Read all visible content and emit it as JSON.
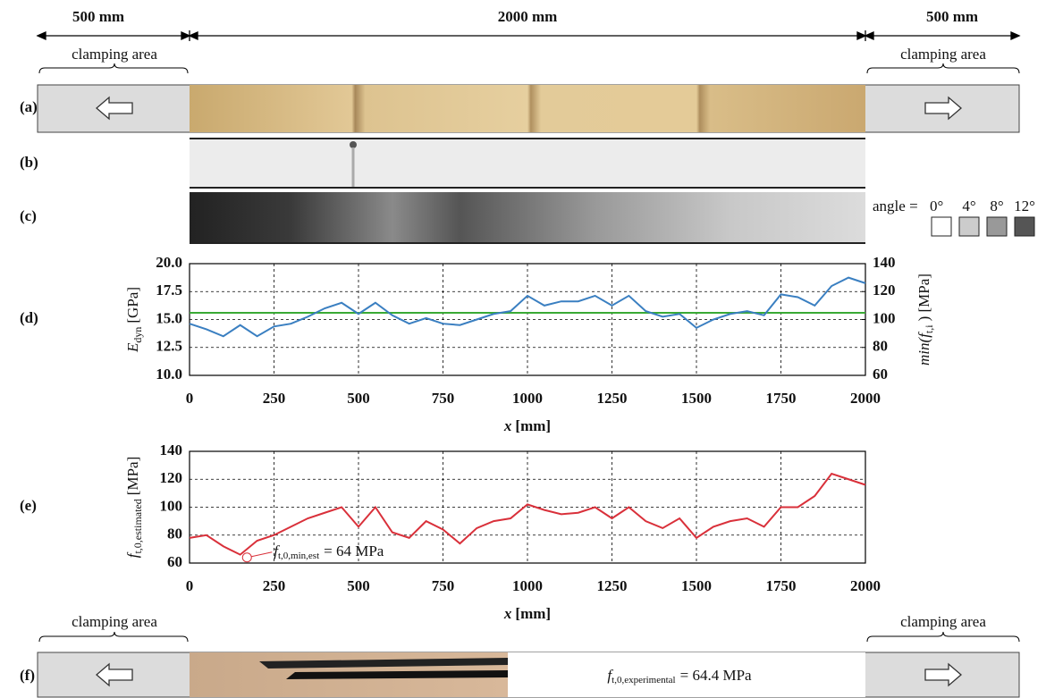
{
  "dimensions": [
    "500 mm",
    "2000 mm",
    "500 mm"
  ],
  "clamping_labels": [
    "clamping area",
    "clamping area",
    "clamping area",
    "clamping area"
  ],
  "panels": [
    "(a)",
    "(b)",
    "(c)",
    "(d)",
    "(e)",
    "(f)"
  ],
  "angle_legend": {
    "prefix": "angle =",
    "labels": [
      "0°",
      "4°",
      "8°",
      "12°"
    ],
    "colors": [
      "#ffffff",
      "#cccccc",
      "#999999",
      "#555555"
    ]
  },
  "experimental": {
    "symbol": "f",
    "subscript": "t,0,experimental",
    "text": "= 64.4 MPa"
  },
  "chart_data": [
    {
      "type": "line",
      "xlabel": {
        "main": "x",
        "unit": "[mm]"
      },
      "ylabel": {
        "main": "E",
        "sub": "dyn",
        "unit": "[GPa]"
      },
      "y2label": {
        "main": "min(f",
        "sub": "t,i",
        "unit": ") [MPa]"
      },
      "x": [
        0,
        50,
        100,
        150,
        200,
        250,
        300,
        350,
        400,
        450,
        500,
        550,
        600,
        650,
        700,
        750,
        800,
        850,
        900,
        950,
        1000,
        1050,
        1100,
        1150,
        1200,
        1250,
        1300,
        1350,
        1400,
        1450,
        1500,
        1550,
        1600,
        1650,
        1700,
        1750,
        1800,
        1850,
        1900,
        1950,
        2000
      ],
      "series": [
        {
          "color": "#3aaa35",
          "x": [
            0,
            2000
          ],
          "values": [
            15.6,
            15.6
          ]
        },
        {
          "color": "#3a7fc1",
          "axis": "y2",
          "values": [
            97,
            93,
            88,
            96,
            88,
            95,
            97,
            102,
            108,
            112,
            104,
            112,
            103,
            97,
            101,
            97,
            96,
            100,
            104,
            106,
            117,
            110,
            113,
            113,
            117,
            110,
            117,
            106,
            102,
            104,
            94,
            100,
            104,
            106,
            103,
            118,
            116,
            110,
            124,
            130,
            126
          ]
        }
      ],
      "xlim": [
        0,
        2000
      ],
      "xticks": [
        0,
        250,
        500,
        750,
        1000,
        1250,
        1500,
        1750,
        2000
      ],
      "ylim": [
        10,
        20
      ],
      "yticks": [
        {
          "value": 10,
          "label": "10.0"
        },
        12.5,
        {
          "value": 15,
          "label": "15.0"
        },
        17.5,
        {
          "value": 20,
          "label": "20.0"
        }
      ],
      "y2lim": [
        60,
        140
      ],
      "y2ticks": [
        60,
        80,
        100,
        120,
        140
      ],
      "grid": true
    },
    {
      "type": "line",
      "xlabel": {
        "main": "x",
        "unit": "[mm]"
      },
      "ylabel": {
        "main": "f",
        "sub": "t,0,estimated",
        "unit": "[MPa]"
      },
      "x": [
        0,
        50,
        100,
        150,
        200,
        250,
        300,
        350,
        400,
        450,
        500,
        550,
        600,
        650,
        700,
        750,
        800,
        850,
        900,
        950,
        1000,
        1050,
        1100,
        1150,
        1200,
        1250,
        1300,
        1350,
        1400,
        1450,
        1500,
        1550,
        1600,
        1650,
        1700,
        1750,
        1800,
        1850,
        1900,
        1950,
        2000
      ],
      "series": [
        {
          "color": "#d9303a",
          "values": [
            78,
            80,
            72,
            66,
            76,
            80,
            86,
            92,
            96,
            100,
            86,
            100,
            82,
            78,
            90,
            84,
            74,
            85,
            90,
            92,
            102,
            98,
            95,
            96,
            100,
            92,
            100,
            90,
            85,
            92,
            78,
            86,
            90,
            92,
            86,
            100,
            100,
            108,
            124,
            120,
            116
          ]
        }
      ],
      "annotation": {
        "x": 170,
        "y": 64,
        "symbol": "f",
        "subscript": "t,0,min,est",
        "text": "= 64 MPa"
      },
      "xlim": [
        0,
        2000
      ],
      "xticks": [
        0,
        250,
        500,
        750,
        1000,
        1250,
        1500,
        1750,
        2000
      ],
      "ylim": [
        60,
        140
      ],
      "yticks": [
        60,
        80,
        100,
        120,
        140
      ],
      "grid": true
    }
  ]
}
